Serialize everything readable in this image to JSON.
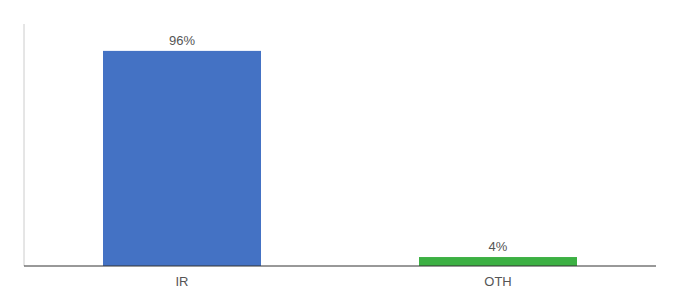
{
  "chart_data": {
    "type": "bar",
    "categories": [
      "IR",
      "OTH"
    ],
    "values": [
      96,
      4
    ],
    "value_labels": [
      "96%",
      "4%"
    ],
    "data_labels": true,
    "colors": [
      "#4472c4",
      "#3cb043"
    ],
    "ylim": [
      0,
      108
    ],
    "yticks": [],
    "tick_labels": "x",
    "grid": false
  }
}
